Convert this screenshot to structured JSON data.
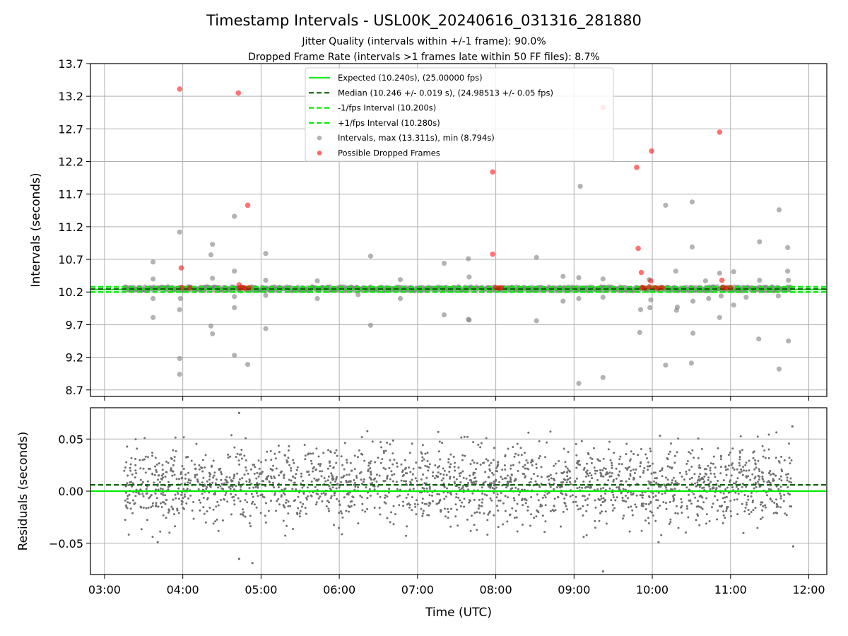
{
  "chart_data": [
    {
      "type": "scatter",
      "panel": "intervals",
      "title": "Timestamp Intervals - USL00K_20240616_031316_281880",
      "subtitle_lines": [
        "Jitter Quality (intervals within +/-1 frame): 90.0%",
        "Dropped Frame Rate (intervals >1 frames late within 50 FF files): 8.7%"
      ],
      "ylabel": "Intervals (seconds)",
      "ylim": [
        8.6,
        13.7
      ],
      "y_ticks": [
        "8.7",
        "9.2",
        "9.7",
        "10.2",
        "10.7",
        "11.2",
        "11.7",
        "12.2",
        "12.7",
        "13.2",
        "13.7"
      ],
      "y_tick_values": [
        8.7,
        9.2,
        9.7,
        10.2,
        10.7,
        11.2,
        11.7,
        12.2,
        12.7,
        13.2,
        13.7
      ],
      "xlim": [
        2.82,
        12.23
      ],
      "x_unit": "hours (UTC)",
      "grid": true,
      "legend_position": "top-center",
      "reference_lines": [
        {
          "name": "Expected (10.240s), (25.00000 fps)",
          "y": 10.24,
          "color": "#00ee00",
          "style": "solid"
        },
        {
          "name": "Median (10.246 +/- 0.019 s), (24.98513 +/- 0.05 fps)",
          "y": 10.246,
          "color": "#006400",
          "style": "dashed"
        },
        {
          "name": "-1/fps Interval (10.200s)",
          "y": 10.2,
          "color": "#00ee00",
          "style": "dashed"
        },
        {
          "name": "+1/fps Interval (10.280s)",
          "y": 10.28,
          "color": "#00ee00",
          "style": "dashed"
        }
      ],
      "series": [
        {
          "name": "Intervals, max (13.311s), min (8.794s)",
          "color": "#808080",
          "band": {
            "x_start": 3.25,
            "x_end": 11.78,
            "y_min": 10.215,
            "y_max": 10.285
          },
          "outliers": [
            [
              3.62,
              10.66
            ],
            [
              3.62,
              10.4
            ],
            [
              3.62,
              10.1
            ],
            [
              3.62,
              9.81
            ],
            [
              3.96,
              11.12
            ],
            [
              3.96,
              9.93
            ],
            [
              3.96,
              9.18
            ],
            [
              3.96,
              8.94
            ],
            [
              3.97,
              10.1
            ],
            [
              4.38,
              10.93
            ],
            [
              4.36,
              10.77
            ],
            [
              4.38,
              10.41
            ],
            [
              4.36,
              9.68
            ],
            [
              4.38,
              9.56
            ],
            [
              4.66,
              11.36
            ],
            [
              4.66,
              10.52
            ],
            [
              4.66,
              10.13
            ],
            [
              4.66,
              9.96
            ],
            [
              4.66,
              9.23
            ],
            [
              4.83,
              9.09
            ],
            [
              5.06,
              10.79
            ],
            [
              5.06,
              10.38
            ],
            [
              5.06,
              10.15
            ],
            [
              5.06,
              9.64
            ],
            [
              5.72,
              10.37
            ],
            [
              5.72,
              10.1
            ],
            [
              6.4,
              10.75
            ],
            [
              6.4,
              9.69
            ],
            [
              6.24,
              10.16
            ],
            [
              6.78,
              10.39
            ],
            [
              6.78,
              10.1
            ],
            [
              7.34,
              10.64
            ],
            [
              7.34,
              9.85
            ],
            [
              7.65,
              10.71
            ],
            [
              7.66,
              10.43
            ],
            [
              7.66,
              9.77
            ],
            [
              7.65,
              9.78
            ],
            [
              8.52,
              10.73
            ],
            [
              8.52,
              9.76
            ],
            [
              8.86,
              10.44
            ],
            [
              8.86,
              10.06
            ],
            [
              9.06,
              10.42
            ],
            [
              9.08,
              11.82
            ],
            [
              9.06,
              8.8
            ],
            [
              9.06,
              10.1
            ],
            [
              9.37,
              10.4
            ],
            [
              9.37,
              10.12
            ],
            [
              9.37,
              8.89
            ],
            [
              9.84,
              9.58
            ],
            [
              9.85,
              9.93
            ],
            [
              9.96,
              10.39
            ],
            [
              9.97,
              9.96
            ],
            [
              9.98,
              10.08
            ],
            [
              10.17,
              11.53
            ],
            [
              10.17,
              9.08
            ],
            [
              10.3,
              10.52
            ],
            [
              10.31,
              9.92
            ],
            [
              10.32,
              9.97
            ],
            [
              10.51,
              11.58
            ],
            [
              10.51,
              10.89
            ],
            [
              10.52,
              10.06
            ],
            [
              10.52,
              9.57
            ],
            [
              10.5,
              9.11
            ],
            [
              10.68,
              10.37
            ],
            [
              10.72,
              10.1
            ],
            [
              10.86,
              10.49
            ],
            [
              10.86,
              9.81
            ],
            [
              10.88,
              10.14
            ],
            [
              11.04,
              10.51
            ],
            [
              11.04,
              10.0
            ],
            [
              11.2,
              10.12
            ],
            [
              11.37,
              10.97
            ],
            [
              11.37,
              10.38
            ],
            [
              11.36,
              9.48
            ],
            [
              11.62,
              11.46
            ],
            [
              11.62,
              9.02
            ],
            [
              11.73,
              10.88
            ],
            [
              11.73,
              10.52
            ],
            [
              11.74,
              10.38
            ],
            [
              11.74,
              9.45
            ],
            [
              11.61,
              10.14
            ]
          ]
        },
        {
          "name": "Possible Dropped Frames",
          "color": "#ff0000",
          "points": [
            [
              3.96,
              13.31
            ],
            [
              3.98,
              10.57
            ],
            [
              3.99,
              10.27
            ],
            [
              4.09,
              10.26
            ],
            [
              4.71,
              13.25
            ],
            [
              4.72,
              10.31
            ],
            [
              4.73,
              10.26
            ],
            [
              4.77,
              10.27
            ],
            [
              4.83,
              11.53
            ],
            [
              4.8,
              10.26
            ],
            [
              4.85,
              10.27
            ],
            [
              7.96,
              12.04
            ],
            [
              7.96,
              10.78
            ],
            [
              8.0,
              10.27
            ],
            [
              8.04,
              10.26
            ],
            [
              8.07,
              10.27
            ],
            [
              9.37,
              13.03
            ],
            [
              9.8,
              12.11
            ],
            [
              9.82,
              10.87
            ],
            [
              9.86,
              10.5
            ],
            [
              9.87,
              10.27
            ],
            [
              9.9,
              10.26
            ],
            [
              9.96,
              10.28
            ],
            [
              9.99,
              12.36
            ],
            [
              9.98,
              10.37
            ],
            [
              10.03,
              10.27
            ],
            [
              10.08,
              10.26
            ],
            [
              10.13,
              10.27
            ],
            [
              10.86,
              12.65
            ],
            [
              10.89,
              10.38
            ],
            [
              10.9,
              10.27
            ],
            [
              10.94,
              10.26
            ],
            [
              11.0,
              10.27
            ]
          ]
        }
      ]
    },
    {
      "type": "scatter",
      "panel": "residuals",
      "ylabel": "Residuals (seconds)",
      "xlabel": "Time (UTC)",
      "ylim": [
        -0.08,
        0.08
      ],
      "y_ticks": [
        "−0.05",
        "0.00",
        "0.05"
      ],
      "y_tick_values": [
        -0.05,
        0.0,
        0.05
      ],
      "x_ticks": [
        "03:00",
        "04:00",
        "05:00",
        "06:00",
        "07:00",
        "08:00",
        "09:00",
        "10:00",
        "11:00",
        "12:00"
      ],
      "x_tick_values": [
        3,
        4,
        5,
        6,
        7,
        8,
        9,
        10,
        11,
        12
      ],
      "xlim": [
        2.82,
        12.23
      ],
      "grid": true,
      "reference_lines": [
        {
          "y": 0.0,
          "color": "#00ee00",
          "style": "solid"
        },
        {
          "y": 0.006,
          "color": "#006400",
          "style": "dashed"
        }
      ],
      "series": [
        {
          "color": "#707070",
          "band": {
            "x_start": 3.25,
            "x_end": 11.78,
            "mean": 0.006,
            "spread": 0.048
          },
          "outliers": [
            [
              4.72,
              0.075
            ],
            [
              4.72,
              -0.065
            ],
            [
              4.89,
              -0.069
            ],
            [
              3.68,
              -0.049
            ],
            [
              9.37,
              -0.077
            ],
            [
              11.8,
              -0.053
            ],
            [
              11.79,
              0.062
            ],
            [
              10.08,
              -0.049
            ]
          ]
        }
      ]
    }
  ]
}
